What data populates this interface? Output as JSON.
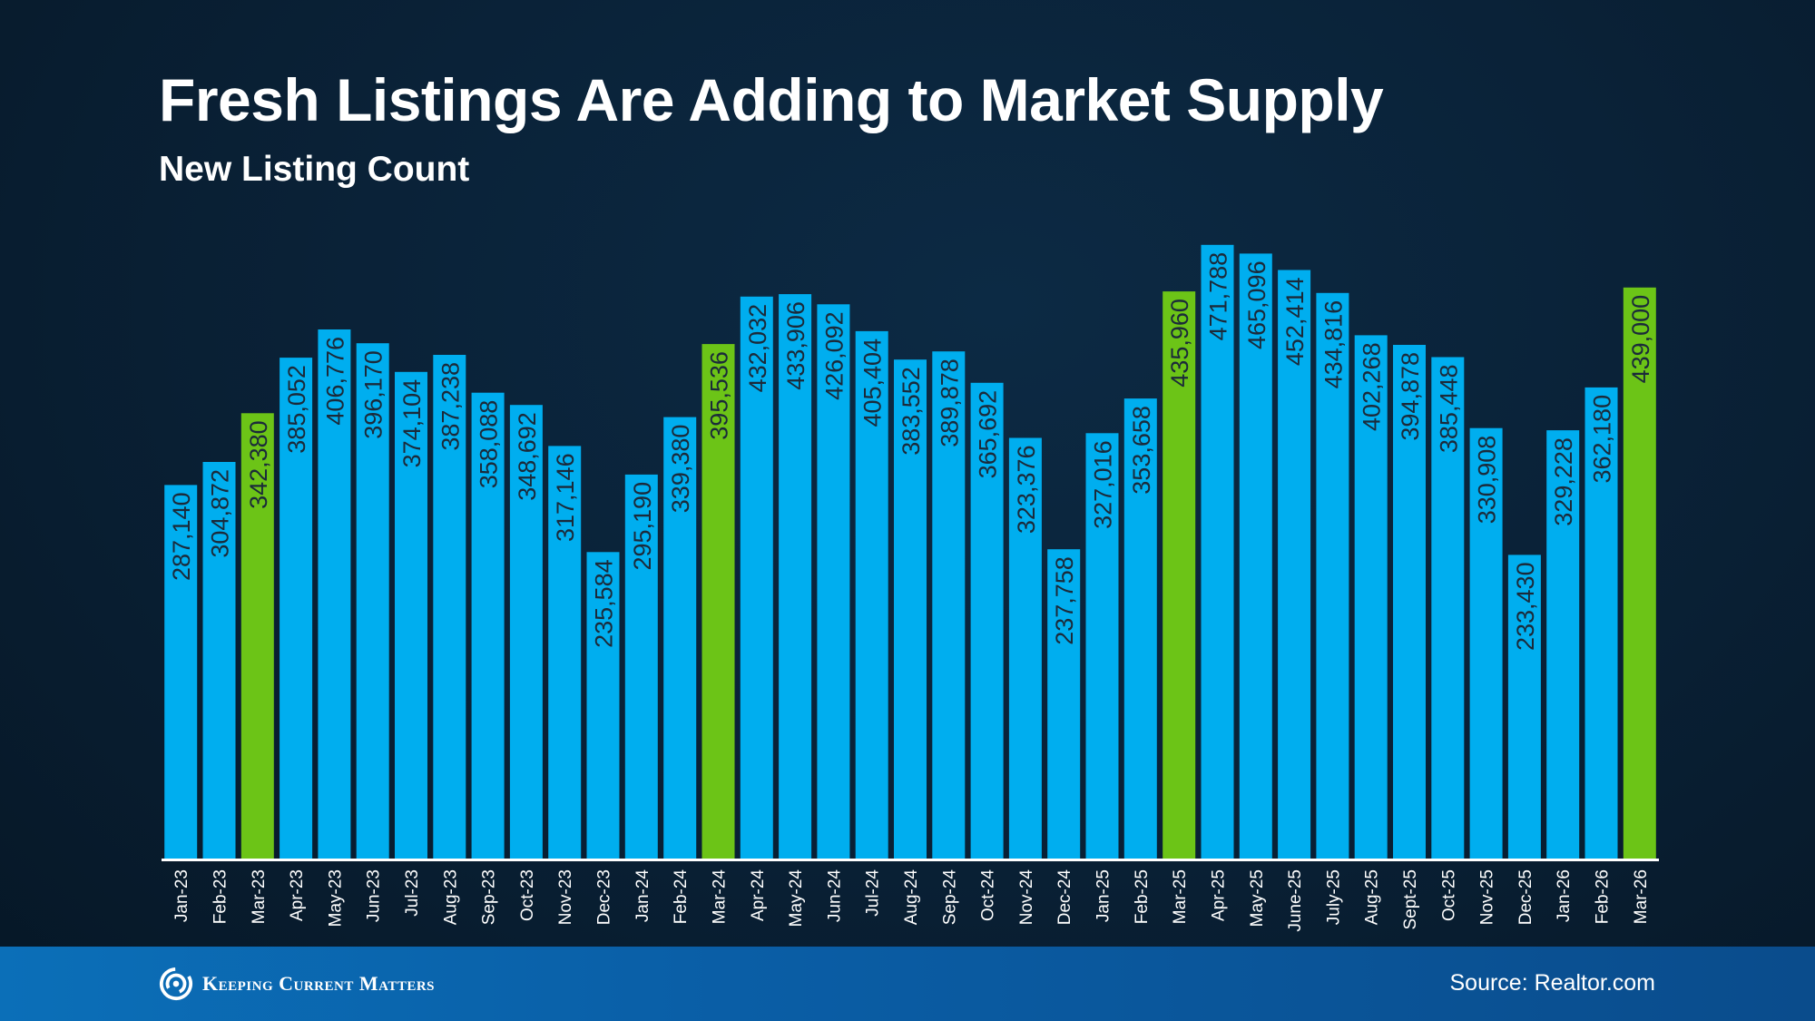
{
  "title": "Fresh Listings Are Adding to Market Supply",
  "subtitle": "New Listing Count",
  "footer": {
    "brand": "Keeping Current Matters",
    "source": "Source: Realtor.com"
  },
  "colors": {
    "bar": "#00aeef",
    "highlight": "#6cc417",
    "label_text": "#1b2a3a",
    "axis": "#ffffff"
  },
  "chart_data": {
    "type": "bar",
    "title": "Fresh Listings Are Adding to Market Supply",
    "subtitle": "New Listing Count",
    "xlabel": "",
    "ylabel": "",
    "ylim": [
      0,
      480000
    ],
    "grid": false,
    "categories": [
      "Jan-23",
      "Feb-23",
      "Mar-23",
      "Apr-23",
      "May-23",
      "Jun-23",
      "Jul-23",
      "Aug-23",
      "Sep-23",
      "Oct-23",
      "Nov-23",
      "Dec-23",
      "Jan-24",
      "Feb-24",
      "Mar-24",
      "Apr-24",
      "May-24",
      "Jun-24",
      "Jul-24",
      "Aug-24",
      "Sep-24",
      "Oct-24",
      "Nov-24",
      "Dec-24",
      "Jan-25",
      "Feb-25",
      "Mar-25",
      "Apr-25",
      "May-25",
      "June-25",
      "July-25",
      "Aug-25",
      "Sept-25",
      "Oct-25",
      "Nov-25",
      "Dec-25",
      "Jan-26",
      "Feb-26",
      "Mar-26"
    ],
    "values": [
      287140,
      304872,
      342380,
      385052,
      406776,
      396170,
      374104,
      387238,
      358088,
      348692,
      317146,
      235584,
      295190,
      339380,
      395536,
      432032,
      433906,
      426092,
      405404,
      383552,
      389878,
      365692,
      323376,
      237758,
      327016,
      353658,
      435960,
      471788,
      465096,
      452414,
      434816,
      402268,
      394878,
      385448,
      330908,
      233430,
      329228,
      362180,
      439000
    ],
    "value_labels": [
      "287,140",
      "304,872",
      "342,380",
      "385,052",
      "406,776",
      "396,170",
      "374,104",
      "387,238",
      "358,088",
      "348,692",
      "317,146",
      "235,584",
      "295,190",
      "339,380",
      "395,536",
      "432,032",
      "433,906",
      "426,092",
      "405,404",
      "383,552",
      "389,878",
      "365,692",
      "323,376",
      "237,758",
      "327,016",
      "353,658",
      "435,960",
      "471,788",
      "465,096",
      "452,414",
      "434,816",
      "402,268",
      "394,878",
      "385,448",
      "330,908",
      "233,430",
      "329,228",
      "362,180",
      "439,000"
    ],
    "highlighted": [
      "Mar-23",
      "Mar-24",
      "Mar-25",
      "Mar-26"
    ]
  }
}
